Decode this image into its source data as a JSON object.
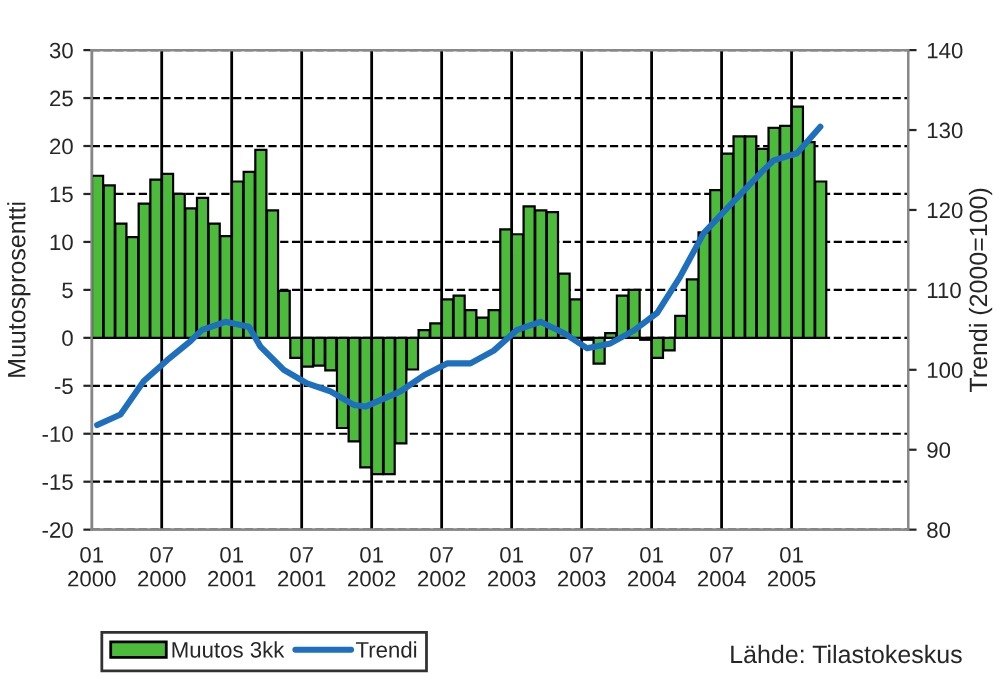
{
  "chart_data": {
    "type": "bar",
    "ylabel": "Muutosprosentti",
    "y2label": "Trendi (2000=100)",
    "x": [
      "2000-01-16",
      "2000-02-16",
      "2000-03-16",
      "2000-04-16",
      "2000-05-16",
      "2000-06-16",
      "2000-07-16",
      "2000-08-16",
      "2000-09-16",
      "2000-10-16",
      "2000-11-16",
      "2000-12-16",
      "2001-01-16",
      "2001-02-16",
      "2001-03-16",
      "2001-04-16",
      "2001-05-16",
      "2001-06-16",
      "2001-07-16",
      "2001-08-16",
      "2001-09-16",
      "2001-10-16",
      "2001-11-16",
      "2001-12-16",
      "2002-01-16",
      "2002-02-16",
      "2002-03-16",
      "2002-04-16",
      "2002-05-16",
      "2002-06-16",
      "2002-07-16",
      "2002-08-16",
      "2002-09-16",
      "2002-10-16",
      "2002-11-16",
      "2002-12-16",
      "2003-01-16",
      "2003-02-16",
      "2003-03-16",
      "2003-04-16",
      "2003-05-16",
      "2003-06-16",
      "2003-07-16",
      "2003-08-16",
      "2003-09-16",
      "2003-10-16",
      "2003-11-16",
      "2003-12-16",
      "2004-01-16",
      "2004-02-16",
      "2004-03-16",
      "2004-04-16",
      "2004-05-16",
      "2004-06-16",
      "2004-07-16",
      "2004-08-16",
      "2004-09-16",
      "2004-10-16",
      "2004-11-16",
      "2004-12-16",
      "2005-01-16",
      "2005-02-16",
      "2005-03-16"
    ],
    "series": [
      {
        "name": "Muutos 3kk",
        "color": "#4cbb3c",
        "values": [
          16.9,
          15.9,
          11.9,
          10.5,
          14.0,
          16.5,
          17.1,
          15.0,
          13.5,
          14.6,
          11.9,
          10.6,
          16.3,
          17.3,
          19.6,
          13.3,
          4.9,
          -2.1,
          -3.0,
          -2.9,
          -3.4,
          -9.4,
          -10.8,
          -13.5,
          -14.2,
          -14.2,
          -11.0,
          -3.3,
          0.8,
          1.5,
          4.0,
          4.4,
          2.9,
          2.1,
          2.9,
          11.3,
          10.8,
          13.7,
          13.3,
          13.1,
          6.7,
          4.0,
          -0.2,
          -2.7,
          0.5,
          4.4,
          5.0,
          -0.2,
          -2.1,
          -1.3,
          2.3,
          6.1,
          11.0,
          15.4,
          19.2,
          21.0,
          21.0,
          19.7,
          21.9,
          22.1,
          24.1,
          20.4,
          16.3
        ]
      },
      {
        "name": "Trendi",
        "type": "line",
        "axis": "y2",
        "color": "#1f6fbf",
        "x": [
          "2000-01-15",
          "2000-03-15",
          "2000-05-15",
          "2000-07-15",
          "2000-09-15",
          "2000-10-15",
          "2000-12-15",
          "2001-02-15",
          "2001-03-15",
          "2001-05-15",
          "2001-07-15",
          "2001-09-15",
          "2001-11-15",
          "2001-12-15",
          "2002-03-15",
          "2002-05-15",
          "2002-07-15",
          "2002-09-15",
          "2002-11-15",
          "2003-01-15",
          "2003-03-15",
          "2003-05-15",
          "2003-07-15",
          "2003-09-15",
          "2003-11-15",
          "2004-01-15",
          "2004-03-15",
          "2004-05-15",
          "2004-07-15",
          "2004-10-15",
          "2004-11-15",
          "2005-01-15",
          "2005-03-15"
        ],
        "values": [
          93.1,
          94.4,
          98.6,
          101.2,
          103.6,
          105.0,
          106.0,
          105.4,
          102.9,
          100.0,
          98.3,
          97.3,
          95.6,
          95.4,
          97.3,
          99.3,
          100.8,
          100.8,
          102.4,
          105.0,
          106.0,
          104.6,
          102.7,
          103.3,
          104.9,
          107.1,
          111.7,
          117.1,
          120.2,
          124.8,
          126.2,
          127.1,
          130.4
        ]
      }
    ],
    "xlim": [
      "2000-01",
      "2005-11"
    ],
    "xticks": [
      {
        "value": "2000-01",
        "label": "01\n2000"
      },
      {
        "value": "2000-07",
        "label": "07\n2000"
      },
      {
        "value": "2001-01",
        "label": "01\n2001"
      },
      {
        "value": "2001-07",
        "label": "07\n2001"
      },
      {
        "value": "2002-01",
        "label": "01\n2002"
      },
      {
        "value": "2002-07",
        "label": "07\n2002"
      },
      {
        "value": "2003-01",
        "label": "01\n2003"
      },
      {
        "value": "2003-07",
        "label": "07\n2003"
      },
      {
        "value": "2004-01",
        "label": "01\n2004"
      },
      {
        "value": "2004-07",
        "label": "07\n2004"
      },
      {
        "value": "2005-01",
        "label": "01\n2005"
      }
    ],
    "ylim": [
      -20,
      30
    ],
    "yticks": [
      -20,
      -15,
      -10,
      -5,
      0,
      5,
      10,
      15,
      20,
      25,
      30
    ],
    "y2lim": [
      80,
      140
    ],
    "y2ticks": [
      80,
      90,
      100,
      110,
      120,
      130,
      140
    ],
    "grid": true,
    "legend": "bottom",
    "line_style": "solid",
    "marker": "none",
    "annotations": [
      "Lähde: Tilastokeskus"
    ]
  }
}
